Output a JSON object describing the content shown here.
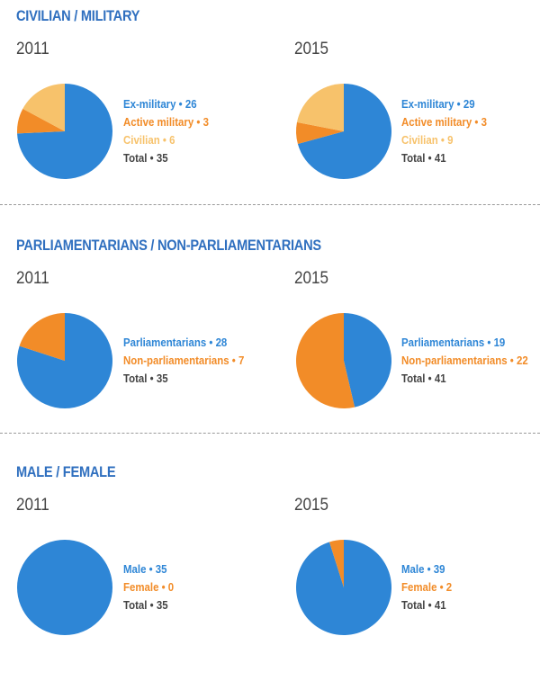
{
  "colors": {
    "blue": "#2e86d6",
    "orange": "#f28c28",
    "light_orange": "#f7c26b",
    "title_blue": "#2f6fbf",
    "text": "#444444"
  },
  "chart_data": [
    {
      "type": "pie",
      "title": "CIVILIAN / MILITARY",
      "pies": [
        {
          "year": "2011",
          "slices": [
            {
              "label": "Ex-military",
              "value": 26,
              "color": "#2e86d6"
            },
            {
              "label": "Active military",
              "value": 3,
              "color": "#f28c28"
            },
            {
              "label": "Civilian",
              "value": 6,
              "color": "#f7c26b"
            }
          ],
          "total": 35
        },
        {
          "year": "2015",
          "slices": [
            {
              "label": "Ex-military",
              "value": 29,
              "color": "#2e86d6"
            },
            {
              "label": "Active military",
              "value": 3,
              "color": "#f28c28"
            },
            {
              "label": "Civilian",
              "value": 9,
              "color": "#f7c26b"
            }
          ],
          "total": 41
        }
      ]
    },
    {
      "type": "pie",
      "title": "PARLIAMENTARIANS / NON-PARLIAMENTARIANS",
      "pies": [
        {
          "year": "2011",
          "slices": [
            {
              "label": "Parliamentarians",
              "value": 28,
              "color": "#2e86d6"
            },
            {
              "label": "Non-parliamentarians",
              "value": 7,
              "color": "#f28c28"
            }
          ],
          "total": 35
        },
        {
          "year": "2015",
          "slices": [
            {
              "label": "Parliamentarians",
              "value": 19,
              "color": "#2e86d6"
            },
            {
              "label": "Non-parliamentarians",
              "value": 22,
              "color": "#f28c28"
            }
          ],
          "total": 41
        }
      ]
    },
    {
      "type": "pie",
      "title": "MALE / FEMALE",
      "pies": [
        {
          "year": "2011",
          "slices": [
            {
              "label": "Male",
              "value": 35,
              "color": "#2e86d6"
            },
            {
              "label": "Female",
              "value": 0,
              "color": "#f28c28"
            }
          ],
          "total": 35
        },
        {
          "year": "2015",
          "slices": [
            {
              "label": "Male",
              "value": 39,
              "color": "#2e86d6"
            },
            {
              "label": "Female",
              "value": 2,
              "color": "#f28c28"
            }
          ],
          "total": 41
        }
      ]
    }
  ],
  "total_label": "Total",
  "separator": "•"
}
